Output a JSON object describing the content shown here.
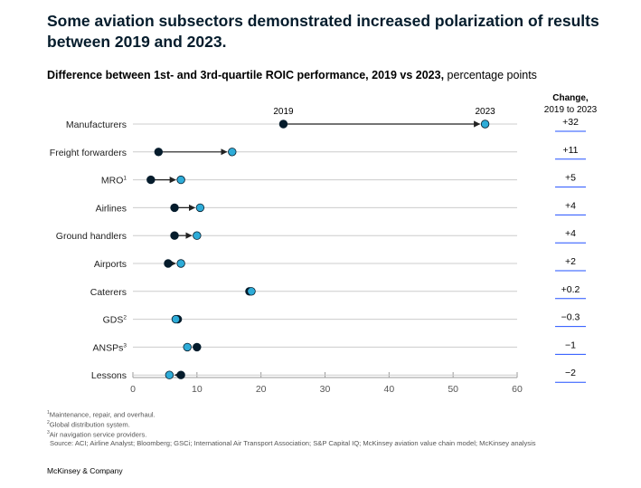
{
  "title": "Some aviation subsectors demonstrated increased polarization of results between 2019 and 2023.",
  "subtitle_bold": "Difference between 1st- and 3rd-quartile ROIC performance, 2019 vs 2023,",
  "subtitle_rest": " percentage points",
  "change_header": {
    "line1": "Change,",
    "line2": "2019 to 2023"
  },
  "footnotes": {
    "n1": {
      "mark": "1",
      "text": "Maintenance, repair, and overhaul."
    },
    "n2": {
      "mark": "2",
      "text": "Global distribution system."
    },
    "n3": {
      "mark": "3",
      "text": "Air navigation service providers."
    },
    "source": "Source: ACI; Airline Analyst; Bloomberg; GSCi; International Air Transport Association; S&P Capital IQ; McKinsey aviation value chain model; McKinsey analysis"
  },
  "brand": "McKinsey & Company",
  "colors": {
    "dot_2019": "#051c2c",
    "dot_2023": "#2eacd8",
    "line": "#222222",
    "grid": "#cccccc",
    "underline": "#2251ff"
  },
  "chart_data": {
    "type": "dumbbell",
    "title": "Difference between 1st- and 3rd-quartile ROIC performance, 2019 vs 2023",
    "xlabel": "percentage points",
    "xlim": [
      0,
      60
    ],
    "xticks": [
      0,
      10,
      20,
      30,
      40,
      50,
      60
    ],
    "series_names": [
      "2019",
      "2023"
    ],
    "rows": [
      {
        "label": "Manufacturers",
        "sup": "",
        "v2019": 23.5,
        "v2023": 55.0,
        "change": "+32"
      },
      {
        "label": "Freight forwarders",
        "sup": "",
        "v2019": 4.0,
        "v2023": 15.5,
        "change": "+11"
      },
      {
        "label": "MRO",
        "sup": "1",
        "v2019": 2.8,
        "v2023": 7.5,
        "change": "+5"
      },
      {
        "label": "Airlines",
        "sup": "",
        "v2019": 6.5,
        "v2023": 10.5,
        "change": "+4"
      },
      {
        "label": "Ground handlers",
        "sup": "",
        "v2019": 6.5,
        "v2023": 10.0,
        "change": "+4"
      },
      {
        "label": "Airports",
        "sup": "",
        "v2019": 5.5,
        "v2023": 7.5,
        "change": "+2"
      },
      {
        "label": "Caterers",
        "sup": "",
        "v2019": 18.2,
        "v2023": 18.5,
        "change": "+0.2"
      },
      {
        "label": "GDS",
        "sup": "2",
        "v2019": 7.0,
        "v2023": 6.7,
        "change": "−0.3"
      },
      {
        "label": "ANSPs",
        "sup": "3",
        "v2019": 10.0,
        "v2023": 8.5,
        "change": "−1"
      },
      {
        "label": "Lessons",
        "sup": "",
        "v2019": 7.5,
        "v2023": 5.7,
        "change": "−2"
      }
    ]
  }
}
